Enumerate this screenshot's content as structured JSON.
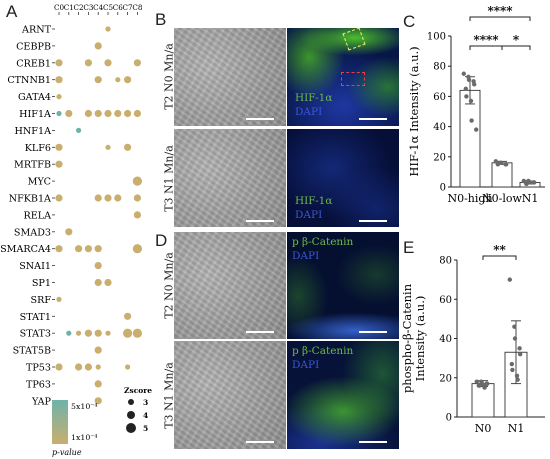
{
  "panel_letters": {
    "a": "A",
    "b": "B",
    "c": "C",
    "d": "D",
    "e": "E"
  },
  "colors": {
    "dot": "#c9ae6e",
    "dot_teal": "#6fb3a8",
    "green": "#5fb33a",
    "blue": "#3452c9",
    "dapi_blue": "#2b45c5"
  },
  "panel_a": {
    "clusters": [
      "C0",
      "C1",
      "C2",
      "C3",
      "C4",
      "C5",
      "C6",
      "C7",
      "C8"
    ],
    "genes": [
      "ARNT",
      "CEBPB",
      "CREB1",
      "CTNNB1",
      "GATA4",
      "HIF1A",
      "HNF1A",
      "KLF6",
      "MRTFB",
      "MYC",
      "NFKB1A",
      "RELA",
      "SMAD3",
      "SMARCA4",
      "SNAI1",
      "SP1",
      "SRF",
      "STAT1",
      "STAT3",
      "STAT5B",
      "TP53",
      "TP63",
      "YAP"
    ],
    "size_legend": {
      "title": "Zscore",
      "levels": [
        3,
        4,
        5
      ]
    },
    "color_legend": {
      "high_label": "5x10⁻⁴",
      "low_label": "1x10⁻⁴",
      "title": "p-value"
    },
    "dots": [
      {
        "gene": "ARNT",
        "cluster": 5,
        "z": 3
      },
      {
        "gene": "CEBPB",
        "cluster": 4,
        "z": 4
      },
      {
        "gene": "CREB1",
        "cluster": 0,
        "z": 4
      },
      {
        "gene": "CREB1",
        "cluster": 3,
        "z": 4
      },
      {
        "gene": "CREB1",
        "cluster": 5,
        "z": 4
      },
      {
        "gene": "CREB1",
        "cluster": 8,
        "z": 4
      },
      {
        "gene": "CTNNB1",
        "cluster": 0,
        "z": 4
      },
      {
        "gene": "CTNNB1",
        "cluster": 4,
        "z": 4
      },
      {
        "gene": "CTNNB1",
        "cluster": 6,
        "z": 3
      },
      {
        "gene": "CTNNB1",
        "cluster": 7,
        "z": 4
      },
      {
        "gene": "GATA4",
        "cluster": 0,
        "z": 3
      },
      {
        "gene": "HIF1A",
        "cluster": 0,
        "z": 3,
        "teal": true
      },
      {
        "gene": "HIF1A",
        "cluster": 1,
        "z": 4
      },
      {
        "gene": "HIF1A",
        "cluster": 3,
        "z": 4
      },
      {
        "gene": "HIF1A",
        "cluster": 4,
        "z": 4
      },
      {
        "gene": "HIF1A",
        "cluster": 5,
        "z": 4
      },
      {
        "gene": "HIF1A",
        "cluster": 6,
        "z": 4
      },
      {
        "gene": "HIF1A",
        "cluster": 7,
        "z": 4
      },
      {
        "gene": "HIF1A",
        "cluster": 8,
        "z": 4
      },
      {
        "gene": "HNF1A",
        "cluster": 2,
        "z": 3,
        "teal": true
      },
      {
        "gene": "KLF6",
        "cluster": 0,
        "z": 4
      },
      {
        "gene": "KLF6",
        "cluster": 5,
        "z": 3
      },
      {
        "gene": "KLF6",
        "cluster": 7,
        "z": 4
      },
      {
        "gene": "MRTFB",
        "cluster": 0,
        "z": 4
      },
      {
        "gene": "MYC",
        "cluster": 8,
        "z": 5
      },
      {
        "gene": "NFKB1A",
        "cluster": 0,
        "z": 4
      },
      {
        "gene": "NFKB1A",
        "cluster": 4,
        "z": 4
      },
      {
        "gene": "NFKB1A",
        "cluster": 5,
        "z": 4
      },
      {
        "gene": "NFKB1A",
        "cluster": 6,
        "z": 4
      },
      {
        "gene": "NFKB1A",
        "cluster": 8,
        "z": 4
      },
      {
        "gene": "RELA",
        "cluster": 8,
        "z": 4
      },
      {
        "gene": "SMAD3",
        "cluster": 1,
        "z": 4
      },
      {
        "gene": "SMARCA4",
        "cluster": 0,
        "z": 4
      },
      {
        "gene": "SMARCA4",
        "cluster": 2,
        "z": 4
      },
      {
        "gene": "SMARCA4",
        "cluster": 3,
        "z": 4
      },
      {
        "gene": "SMARCA4",
        "cluster": 4,
        "z": 4
      },
      {
        "gene": "SMARCA4",
        "cluster": 8,
        "z": 5
      },
      {
        "gene": "SNAI1",
        "cluster": 4,
        "z": 4
      },
      {
        "gene": "SP1",
        "cluster": 4,
        "z": 4
      },
      {
        "gene": "SP1",
        "cluster": 5,
        "z": 4
      },
      {
        "gene": "SRF",
        "cluster": 0,
        "z": 3
      },
      {
        "gene": "STAT1",
        "cluster": 7,
        "z": 4
      },
      {
        "gene": "STAT3",
        "cluster": 1,
        "z": 3,
        "teal": true
      },
      {
        "gene": "STAT3",
        "cluster": 2,
        "z": 3
      },
      {
        "gene": "STAT3",
        "cluster": 3,
        "z": 4
      },
      {
        "gene": "STAT3",
        "cluster": 4,
        "z": 4
      },
      {
        "gene": "STAT3",
        "cluster": 5,
        "z": 3
      },
      {
        "gene": "STAT3",
        "cluster": 7,
        "z": 5
      },
      {
        "gene": "STAT3",
        "cluster": 8,
        "z": 5
      },
      {
        "gene": "STAT5B",
        "cluster": 4,
        "z": 4
      },
      {
        "gene": "TP53",
        "cluster": 0,
        "z": 4
      },
      {
        "gene": "TP53",
        "cluster": 2,
        "z": 4
      },
      {
        "gene": "TP53",
        "cluster": 3,
        "z": 4
      },
      {
        "gene": "TP53",
        "cluster": 4,
        "z": 3
      },
      {
        "gene": "TP53",
        "cluster": 7,
        "z": 3
      },
      {
        "gene": "TP63",
        "cluster": 4,
        "z": 4
      },
      {
        "gene": "YAP",
        "cluster": 4,
        "z": 4
      }
    ]
  },
  "panel_b": {
    "row_labels": [
      "T2 N0 Mn/a",
      "T3 N1 Mn/a"
    ],
    "marker": "HIF-1α",
    "counterstain": "DAPI"
  },
  "panel_d": {
    "row_labels": [
      "T2 N0 Mn/a",
      "T3 N1 Mn/a"
    ],
    "marker": "p β-Catenin",
    "counterstain": "DAPI"
  },
  "chart_data": [
    {
      "type": "bar",
      "panel": "C",
      "categories": [
        "N0-high",
        "N0-low",
        "N1"
      ],
      "values": [
        64,
        16,
        3
      ],
      "error": [
        9,
        1,
        1
      ],
      "points": [
        [
          75,
          73,
          71,
          70,
          68,
          65,
          60,
          57,
          44,
          38
        ],
        [
          17,
          16,
          16,
          15,
          15,
          15
        ],
        [
          4,
          4,
          3,
          3,
          3,
          3,
          2
        ]
      ],
      "ylabel": "HIF-1α Intensity (a.u.)",
      "ylim": [
        0,
        100
      ],
      "yticks": [
        0,
        20,
        40,
        60,
        80,
        100
      ],
      "significance": [
        {
          "from": 0,
          "to": 2,
          "label": "****"
        },
        {
          "from": 0,
          "to": 1,
          "label": "****"
        },
        {
          "from": 1,
          "to": 2,
          "label": "*"
        }
      ]
    },
    {
      "type": "bar",
      "panel": "E",
      "categories": [
        "N0",
        "N1"
      ],
      "values": [
        17,
        33
      ],
      "error": [
        1.5,
        16
      ],
      "points": [
        [
          18,
          18,
          17,
          17,
          17,
          16,
          16,
          16,
          15
        ],
        [
          70,
          46,
          40,
          35,
          32,
          27,
          24,
          21,
          19
        ]
      ],
      "ylabel": "phospho-β-Catenin Intensity (a.u.)",
      "ylim": [
        0,
        80
      ],
      "yticks": [
        0,
        20,
        40,
        60,
        80
      ],
      "significance": [
        {
          "from": 0,
          "to": 1,
          "label": "**"
        }
      ]
    }
  ]
}
